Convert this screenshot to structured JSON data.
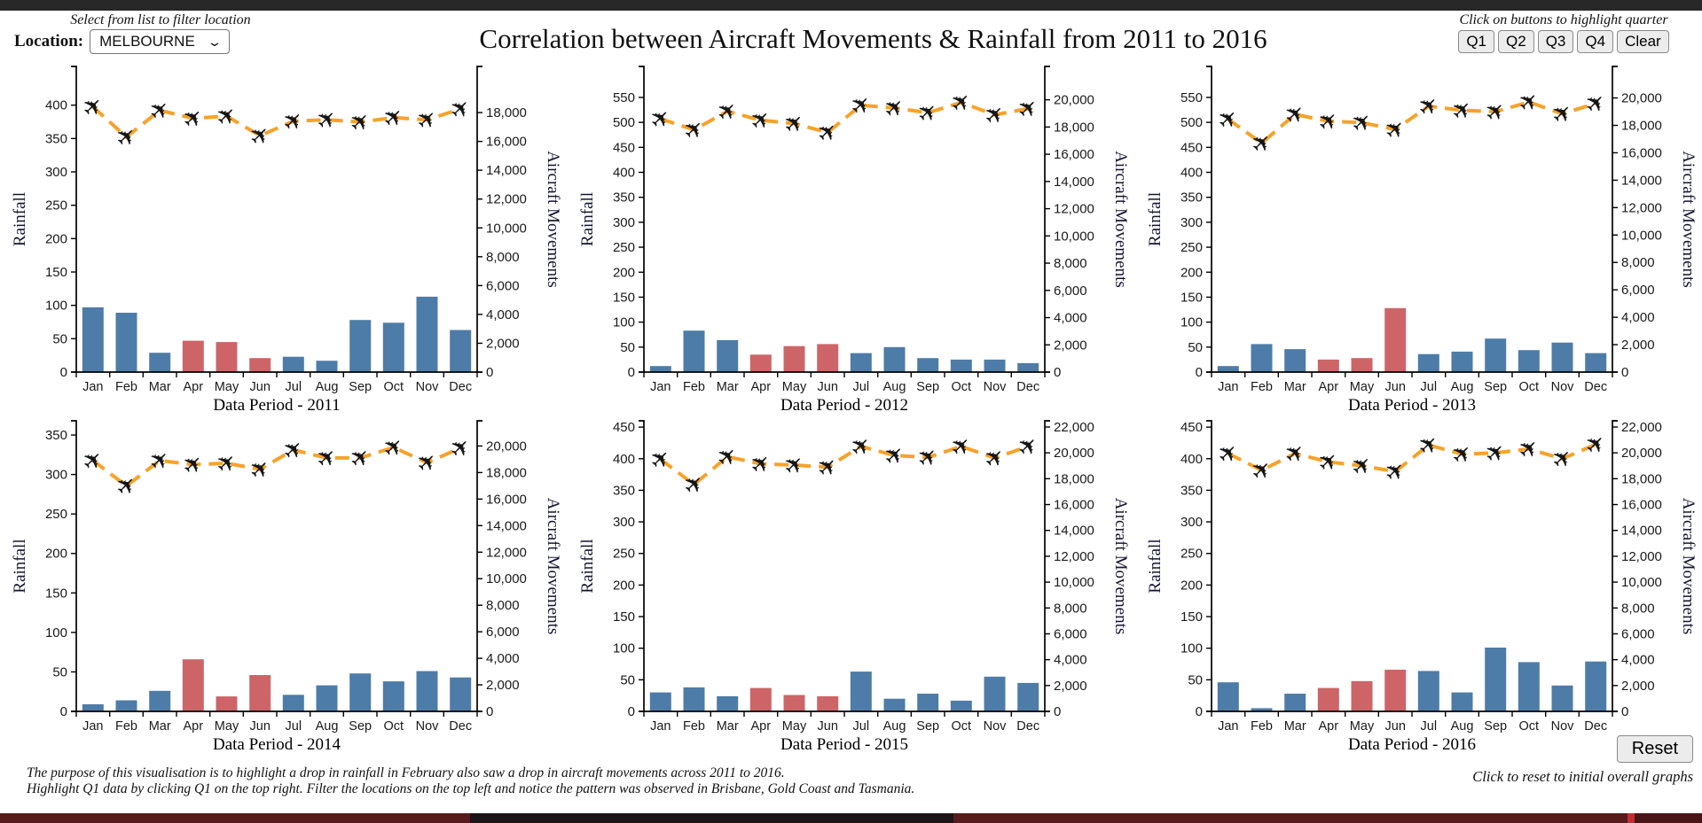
{
  "header": {
    "filter_hint": "Select from list to filter location",
    "location_label": "Location:",
    "location_value": "MELBOURNE",
    "title": "Correlation between Aircraft Movements & Rainfall from 2011 to 2016",
    "quarter_hint": "Click on buttons to highlight quarter",
    "quarter_buttons": [
      "Q1",
      "Q2",
      "Q3",
      "Q4",
      "Clear"
    ]
  },
  "colors": {
    "bar_blue": "#4e7ca8",
    "bar_red": "#cd6568",
    "line_orange": "#f7a229",
    "plane_black": "#151515"
  },
  "chart_data": [
    {
      "type": "bar+line",
      "year": "2011",
      "xlabel": "Data Period - 2011",
      "months": [
        "Jan",
        "Feb",
        "Mar",
        "Apr",
        "May",
        "Jun",
        "Jul",
        "Aug",
        "Sep",
        "Oct",
        "Nov",
        "Dec"
      ],
      "bars": {
        "name": "Rainfall",
        "values": [
          97,
          89,
          29,
          47,
          45,
          21,
          23,
          17,
          78,
          74,
          113,
          63
        ],
        "highlight_months": [
          "Apr",
          "May",
          "Jun"
        ]
      },
      "line": {
        "name": "Aircraft Movements",
        "values": [
          18400,
          16300,
          18150,
          17600,
          17750,
          16400,
          17400,
          17500,
          17350,
          17650,
          17500,
          18250
        ]
      },
      "left_axis": {
        "label": "Rainfall",
        "tick_step": 50,
        "tick_max": 400,
        "domain_max": 458
      },
      "right_axis": {
        "label": "Aircraft Movements",
        "tick_step": 2000,
        "tick_max": 18000,
        "domain_max": 21200
      }
    },
    {
      "type": "bar+line",
      "year": "2012",
      "xlabel": "Data Period - 2012",
      "months": [
        "Jan",
        "Feb",
        "Mar",
        "Apr",
        "May",
        "Jun",
        "Jul",
        "Aug",
        "Sep",
        "Oct",
        "Nov",
        "Dec"
      ],
      "bars": {
        "name": "Rainfall",
        "values": [
          12,
          83,
          64,
          35,
          52,
          56,
          38,
          50,
          28,
          25,
          25,
          18
        ],
        "highlight_months": [
          "Apr",
          "May",
          "Jun"
        ]
      },
      "line": {
        "name": "Aircraft Movements",
        "values": [
          18600,
          17800,
          19150,
          18500,
          18250,
          17600,
          19600,
          19400,
          19050,
          19800,
          18900,
          19350
        ]
      },
      "left_axis": {
        "label": "Rainfall",
        "tick_step": 50,
        "tick_max": 550,
        "domain_max": 612
      },
      "right_axis": {
        "label": "Aircraft Movements",
        "tick_step": 2000,
        "tick_max": 20000,
        "domain_max": 22450
      }
    },
    {
      "type": "bar+line",
      "year": "2013",
      "xlabel": "Data Period - 2013",
      "months": [
        "Jan",
        "Feb",
        "Mar",
        "Apr",
        "May",
        "Jun",
        "Jul",
        "Aug",
        "Sep",
        "Oct",
        "Nov",
        "Dec"
      ],
      "bars": {
        "name": "Rainfall",
        "values": [
          12,
          56,
          46,
          25,
          28,
          128,
          36,
          41,
          67,
          44,
          59,
          38
        ],
        "highlight_months": [
          "Apr",
          "May",
          "Jun"
        ]
      },
      "line": {
        "name": "Aircraft Movements",
        "values": [
          18450,
          16700,
          18800,
          18300,
          18200,
          17700,
          19400,
          19100,
          19000,
          19700,
          18850,
          19600
        ]
      },
      "left_axis": {
        "label": "Rainfall",
        "tick_step": 50,
        "tick_max": 550,
        "domain_max": 612
      },
      "right_axis": {
        "label": "Aircraft Movements",
        "tick_step": 2000,
        "tick_max": 20000,
        "domain_max": 22300
      }
    },
    {
      "type": "bar+line",
      "year": "2014",
      "xlabel": "Data Period - 2014",
      "months": [
        "Jan",
        "Feb",
        "Mar",
        "Apr",
        "May",
        "Jun",
        "Jul",
        "Aug",
        "Sep",
        "Oct",
        "Nov",
        "Dec"
      ],
      "bars": {
        "name": "Rainfall",
        "values": [
          9,
          14,
          26,
          66,
          19,
          46,
          21,
          33,
          48,
          38,
          51,
          43
        ],
        "highlight_months": [
          "Apr",
          "May",
          "Jun"
        ]
      },
      "line": {
        "name": "Aircraft Movements",
        "values": [
          18900,
          17000,
          18900,
          18600,
          18700,
          18250,
          19700,
          19100,
          19100,
          19900,
          18750,
          19850
        ]
      },
      "left_axis": {
        "label": "Rainfall",
        "tick_step": 50,
        "tick_max": 350,
        "domain_max": 368
      },
      "right_axis": {
        "label": "Aircraft Movements",
        "tick_step": 2000,
        "tick_max": 20000,
        "domain_max": 21900
      }
    },
    {
      "type": "bar+line",
      "year": "2015",
      "xlabel": "Data Period - 2015",
      "months": [
        "Jan",
        "Feb",
        "Mar",
        "Apr",
        "May",
        "Jun",
        "Jul",
        "Aug",
        "Sep",
        "Oct",
        "Nov",
        "Dec"
      ],
      "bars": {
        "name": "Rainfall",
        "values": [
          30,
          38,
          24,
          37,
          26,
          24,
          63,
          20,
          28,
          17,
          55,
          45
        ],
        "highlight_months": [
          "Apr",
          "May",
          "Jun"
        ]
      },
      "line": {
        "name": "Aircraft Movements",
        "values": [
          19500,
          17550,
          19700,
          19150,
          19050,
          18900,
          20500,
          19800,
          19650,
          20500,
          19600,
          20500
        ]
      },
      "left_axis": {
        "label": "Rainfall",
        "tick_step": 50,
        "tick_max": 450,
        "domain_max": 460
      },
      "right_axis": {
        "label": "Aircraft Movements",
        "tick_step": 2000,
        "tick_max": 22000,
        "domain_max": 22480
      }
    },
    {
      "type": "bar+line",
      "year": "2016",
      "xlabel": "Data Period - 2016",
      "months": [
        "Jan",
        "Feb",
        "Mar",
        "Apr",
        "May",
        "Jun",
        "Jul",
        "Aug",
        "Sep",
        "Oct",
        "Nov",
        "Dec"
      ],
      "bars": {
        "name": "Rainfall",
        "values": [
          46,
          5,
          28,
          37,
          48,
          66,
          64,
          30,
          101,
          78,
          41,
          79
        ],
        "highlight_months": [
          "Apr",
          "May",
          "Jun"
        ]
      },
      "line": {
        "name": "Aircraft Movements",
        "values": [
          19950,
          18650,
          19950,
          19300,
          19000,
          18550,
          20600,
          19900,
          20000,
          20300,
          19550,
          20650
        ]
      },
      "left_axis": {
        "label": "Rainfall",
        "tick_step": 50,
        "tick_max": 450,
        "domain_max": 460
      },
      "right_axis": {
        "label": "Aircraft Movements",
        "tick_step": 2000,
        "tick_max": 22000,
        "domain_max": 22480
      }
    }
  ],
  "footer": {
    "note_line1": "The purpose of this visualisation is to highlight a drop in rainfall in February also saw a drop in aircraft movements across 2011 to 2016.",
    "note_line2": "Highlight Q1 data by clicking Q1 on the top right. Filter the locations on the top left and notice the pattern was observed in Brisbane, Gold Coast and Tasmania.",
    "reset_label": "Reset",
    "reset_hint": "Click to reset to initial overall graphs"
  }
}
